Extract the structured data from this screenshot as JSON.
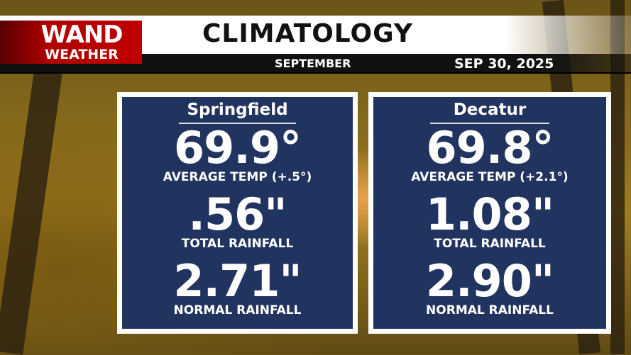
{
  "logo": {
    "line1": "WAND",
    "line2": "WEATHER"
  },
  "header": {
    "title": "CLIMATOLOGY",
    "month": "SEPTEMBER",
    "date": "SEP 30, 2025"
  },
  "colors": {
    "panel_bg": "#21335f",
    "logo_red": "#c00000"
  },
  "cities": [
    {
      "name": "Springfield",
      "avg_temp": "69.9°",
      "avg_temp_label": "AVERAGE TEMP (+.5°)",
      "total_rain": ".56\"",
      "total_rain_label": "TOTAL RAINFALL",
      "normal_rain": "2.71\"",
      "normal_rain_label": "NORMAL RAINFALL"
    },
    {
      "name": "Decatur",
      "avg_temp": "69.8°",
      "avg_temp_label": "AVERAGE TEMP (+2.1°)",
      "total_rain": "1.08\"",
      "total_rain_label": "TOTAL RAINFALL",
      "normal_rain": "2.90\"",
      "normal_rain_label": "NORMAL RAINFALL"
    }
  ]
}
